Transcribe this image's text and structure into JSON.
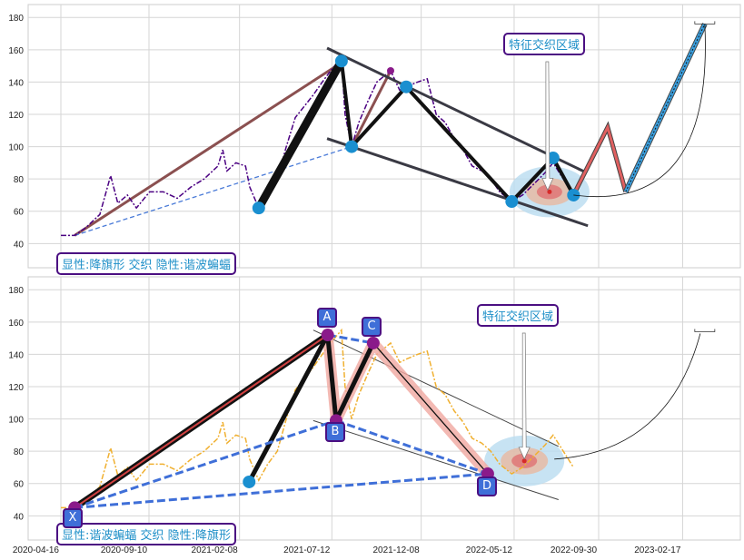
{
  "chart_data": [
    {
      "type": "line",
      "panel": "top",
      "ylim": [
        25,
        188
      ],
      "yticks": [
        40,
        60,
        80,
        100,
        120,
        140,
        160,
        180
      ],
      "xticks": [
        "2020-04-16",
        "2020-09-10",
        "2021-02-08",
        "2021-07-12",
        "2021-12-08",
        "2022-05-12",
        "2022-09-30",
        "2023-02-17"
      ],
      "grid": true,
      "price_color": "#4b0082",
      "price": [
        [
          "2020-04-16",
          45
        ],
        [
          "2020-05-09",
          45
        ],
        [
          "2020-05-28",
          50
        ],
        [
          "2020-06-20",
          58
        ],
        [
          "2020-07-08",
          82
        ],
        [
          "2020-07-20",
          65
        ],
        [
          "2020-08-05",
          70
        ],
        [
          "2020-08-20",
          62
        ],
        [
          "2020-09-11",
          72
        ],
        [
          "2020-10-04",
          72
        ],
        [
          "2020-10-27",
          68
        ],
        [
          "2020-11-19",
          75
        ],
        [
          "2020-12-11",
          80
        ],
        [
          "2021-01-03",
          88
        ],
        [
          "2021-01-11",
          98
        ],
        [
          "2021-01-18",
          85
        ],
        [
          "2021-02-02",
          90
        ],
        [
          "2021-02-18",
          88
        ],
        [
          "2021-02-25",
          75
        ],
        [
          "2021-03-12",
          62
        ],
        [
          "2021-03-27",
          72
        ],
        [
          "2021-04-12",
          80
        ],
        [
          "2021-04-27",
          100
        ],
        [
          "2021-05-12",
          118
        ],
        [
          "2021-05-27",
          125
        ],
        [
          "2021-06-11",
          132
        ],
        [
          "2021-06-26",
          140
        ],
        [
          "2021-07-12",
          148
        ],
        [
          "2021-07-28",
          155
        ],
        [
          "2021-08-03",
          120
        ],
        [
          "2021-08-14",
          100
        ],
        [
          "2021-08-26",
          115
        ],
        [
          "2021-09-10",
          128
        ],
        [
          "2021-09-25",
          140
        ],
        [
          "2021-10-18",
          147
        ],
        [
          "2021-11-02",
          135
        ],
        [
          "2021-11-13",
          137
        ],
        [
          "2021-12-02",
          140
        ],
        [
          "2021-12-18",
          142
        ],
        [
          "2022-01-02",
          120
        ],
        [
          "2022-01-17",
          115
        ],
        [
          "2022-02-01",
          105
        ],
        [
          "2022-02-16",
          98
        ],
        [
          "2022-03-03",
          88
        ],
        [
          "2022-03-19",
          85
        ],
        [
          "2022-04-03",
          80
        ],
        [
          "2022-04-18",
          72
        ],
        [
          "2022-05-08",
          66
        ],
        [
          "2022-05-26",
          70
        ],
        [
          "2022-06-17",
          78
        ],
        [
          "2022-07-03",
          84
        ],
        [
          "2022-07-16",
          90
        ],
        [
          "2022-08-02",
          80
        ],
        [
          "2022-08-19",
          70
        ]
      ],
      "flag_pivots": [
        [
          "2021-03-12",
          62
        ],
        [
          "2021-07-28",
          153
        ],
        [
          "2021-08-14",
          100
        ],
        [
          "2021-11-13",
          137
        ],
        [
          "2022-05-08",
          66
        ],
        [
          "2022-07-16",
          93
        ],
        [
          "2022-08-19",
          70
        ]
      ],
      "harmonic_path": [
        [
          "2020-05-09",
          45
        ],
        [
          "2021-07-28",
          152
        ],
        [
          "2021-08-14",
          100
        ],
        [
          "2021-10-18",
          147
        ]
      ],
      "harmonic_point": [
        "2021-10-18",
        147
      ],
      "dashed_line": [
        [
          "2020-05-09",
          45
        ],
        [
          "2021-08-14",
          100
        ]
      ],
      "channel_upper": [
        [
          "2021-07-04",
          161
        ],
        [
          "2022-09-09",
          84
        ]
      ],
      "channel_lower": [
        [
          "2021-07-04",
          105
        ],
        [
          "2022-09-12",
          51
        ]
      ],
      "projection_red": [
        [
          "2022-08-19",
          70
        ],
        [
          "2022-10-15",
          112
        ],
        [
          "2022-11-14",
          72
        ]
      ],
      "projection_blue": [
        [
          "2022-11-14",
          72
        ],
        [
          "2023-03-26",
          176
        ]
      ],
      "target": [
        "2023-03-26",
        176
      ],
      "zone_center": [
        "2022-07-10",
        72
      ],
      "zone_label": "特征交织区域",
      "pattern_label": "显性:降旗形 交织 隐性:谐波蝙蝠"
    },
    {
      "type": "line",
      "panel": "bottom",
      "ylim": [
        25,
        188
      ],
      "yticks": [
        40,
        60,
        80,
        100,
        120,
        140,
        160,
        180
      ],
      "xticks": [
        "2020-04-16",
        "2020-09-10",
        "2021-02-08",
        "2021-07-12",
        "2021-12-08",
        "2022-05-12",
        "2022-09-30",
        "2023-02-17"
      ],
      "grid": true,
      "price_color": "#f0b030",
      "points": [
        {
          "label": "X",
          "date": "2020-05-09",
          "value": 45
        },
        {
          "label": "A",
          "date": "2021-07-05",
          "value": 152
        },
        {
          "label": "B",
          "date": "2021-07-19",
          "value": 99
        },
        {
          "label": "C",
          "date": "2021-09-19",
          "value": 147
        },
        {
          "label": "D",
          "date": "2022-03-29",
          "value": 66
        }
      ],
      "flag_start": [
        "2021-02-24",
        61
      ],
      "channel_upper": [
        [
          "2021-06-11",
          155
        ],
        [
          "2022-07-25",
          83
        ]
      ],
      "channel_lower": [
        [
          "2021-06-11",
          99
        ],
        [
          "2022-07-25",
          50
        ]
      ],
      "zone_center": [
        "2022-05-29",
        74
      ],
      "target": [
        "2023-03-26",
        154
      ],
      "zone_label": "特征交织区域",
      "pattern_label": "显性:谐波蝙蝠 交织 隐性:降旗形"
    }
  ]
}
